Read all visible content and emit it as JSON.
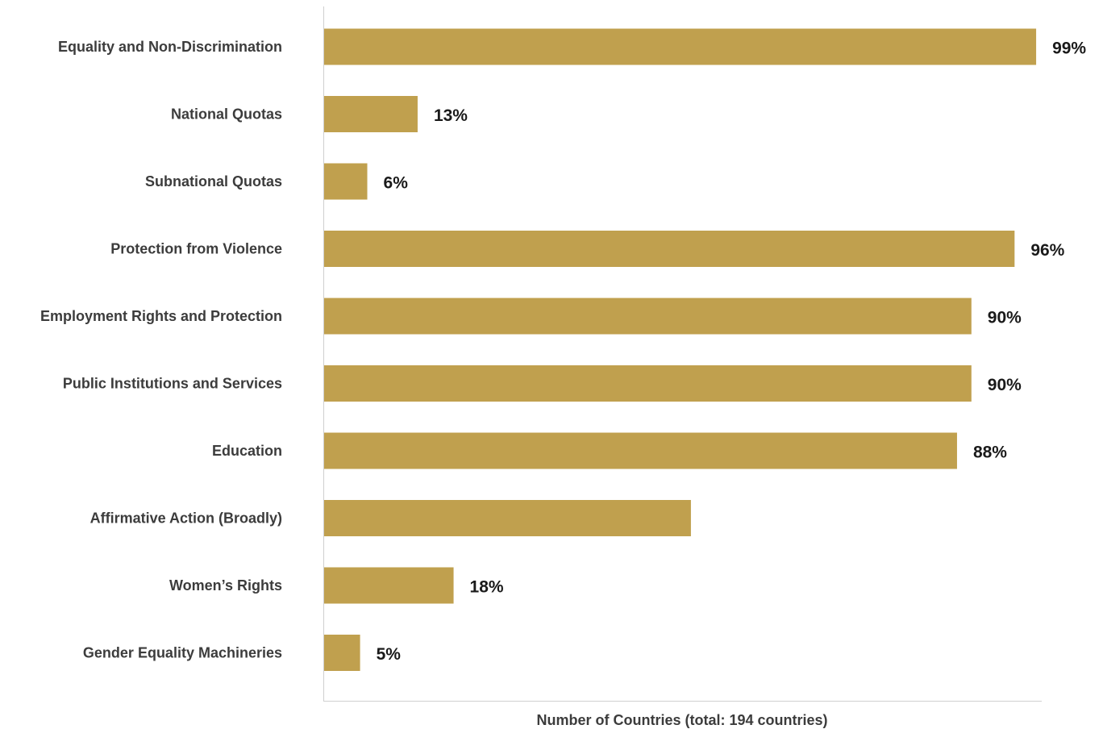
{
  "chart_data": {
    "type": "bar",
    "orientation": "horizontal",
    "categories": [
      "Equality and Non-Discrimination",
      "National Quotas",
      "Subnational Quotas",
      "Protection from Violence",
      "Employment Rights and Protection",
      "Public Institutions and Services",
      "Education",
      "Affirmative Action (Broadly)",
      "Women’s Rights",
      "Gender Equality Machineries"
    ],
    "values": [
      99,
      13,
      6,
      96,
      90,
      90,
      88,
      51,
      18,
      5
    ],
    "data_labels": [
      "99%",
      "13%",
      "6%",
      "96%",
      "90%",
      "90%",
      "88%",
      "",
      "18%",
      "5%"
    ],
    "xlabel": "Number of Countries (total: 194 countries)",
    "ylabel": "",
    "xlim": [
      0,
      100
    ],
    "grid": false,
    "legend": "none",
    "bar_color": "#c0a04e"
  }
}
